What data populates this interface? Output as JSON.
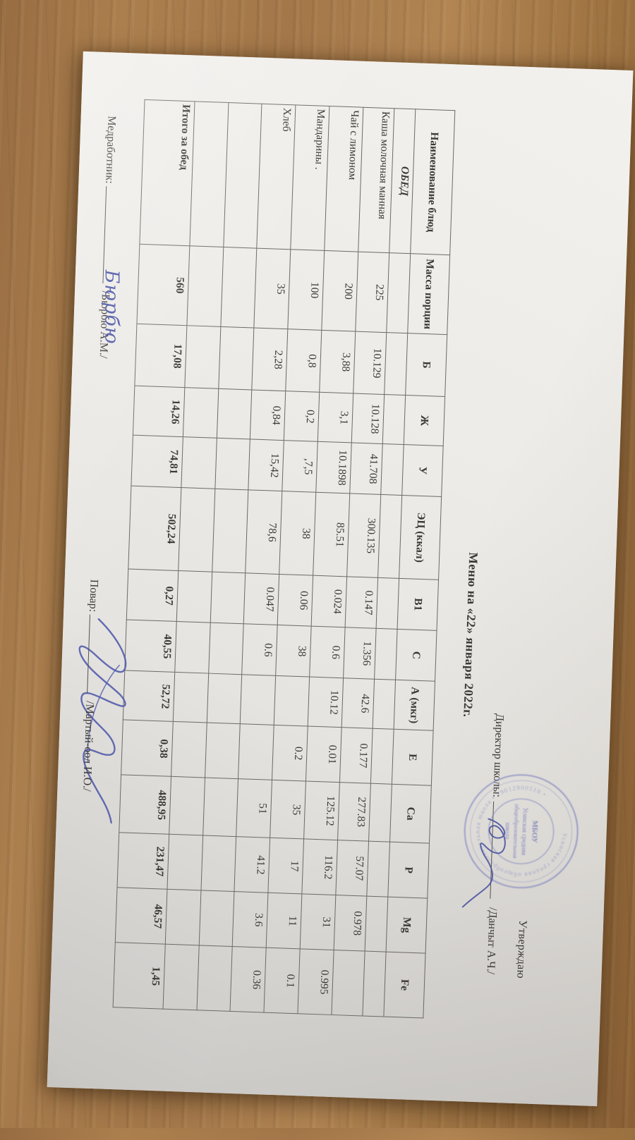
{
  "approve": {
    "line1": "Утверждаю",
    "line2_label": "Директор школы:",
    "line2_name": "/Данчыт А.Ч./"
  },
  "title": "Меню на «22» января 2022г.",
  "table": {
    "headers": [
      "Наименование блюд",
      "Масса порции",
      "Б",
      "Ж",
      "У",
      "ЭЦ (ккал)",
      "В1",
      "С",
      "А (мкг)",
      "Е",
      "Са",
      "Р",
      "Mg",
      "Fe"
    ],
    "section_label": "ОБЕД",
    "rows": [
      {
        "name": "Каша молочная манная",
        "values": [
          "225",
          "10.129",
          "10.128",
          "41.708",
          "300.135",
          "0.147",
          "1.356",
          "42.6",
          "0.177",
          "277.83",
          "57.07",
          "0.978",
          ""
        ]
      },
      {
        "name": "Чай с лимоном",
        "values": [
          "200",
          "3,88",
          "3,1",
          "10.1898",
          "85.51",
          "0.024",
          "0.6",
          "10.12",
          "0.01",
          "125.12",
          "116.2",
          "31",
          "0.995"
        ]
      },
      {
        "name": "Мандарины .",
        "values": [
          "100",
          "0,8",
          "0,2",
          ",7,5",
          "38",
          "0.06",
          "38",
          "",
          "0.2",
          "35",
          "17",
          "11",
          "0.1"
        ]
      },
      {
        "name": "Хлеб",
        "values": [
          "35",
          "2,28",
          "0,84",
          "15,42",
          "78,6",
          "0.047",
          "0.6",
          "",
          "",
          "51",
          "41.2",
          "3.6",
          "0.36"
        ]
      },
      {
        "name": "",
        "values": [
          "",
          "",
          "",
          "",
          "",
          "",
          "",
          "",
          "",
          "",
          "",
          "",
          ""
        ]
      },
      {
        "name": "",
        "values": [
          "",
          "",
          "",
          "",
          "",
          "",
          "",
          "",
          "",
          "",
          "",
          "",
          ""
        ]
      }
    ],
    "total_row": {
      "name": "Итого за обед",
      "values": [
        "560",
        "17,08",
        "14,26",
        "74,81",
        "502,24",
        "0,27",
        "40,55",
        "52,72",
        "0,38",
        "488,95",
        "231,47",
        "46,57",
        "1,45"
      ]
    }
  },
  "footer": {
    "med_label": "Медработник:",
    "med_name": "/Бюрбю А.М./",
    "med_handwriting": "Бюрбю",
    "cook_label": "Повар:",
    "cook_name": "/Мартый-оол И.О./"
  },
  "stamp": {
    "ring_text": "Усинская средняя общеобразовательная школа • 19012900510 •",
    "center_lines": [
      "МБОУ",
      "Усинская средняя",
      "общеобразовательная",
      "школа"
    ],
    "ink_color": "#8a8fc8"
  },
  "colors": {
    "pen_ink": "#4d56a6",
    "paper": "#edebe7",
    "wood": "#a37749"
  }
}
